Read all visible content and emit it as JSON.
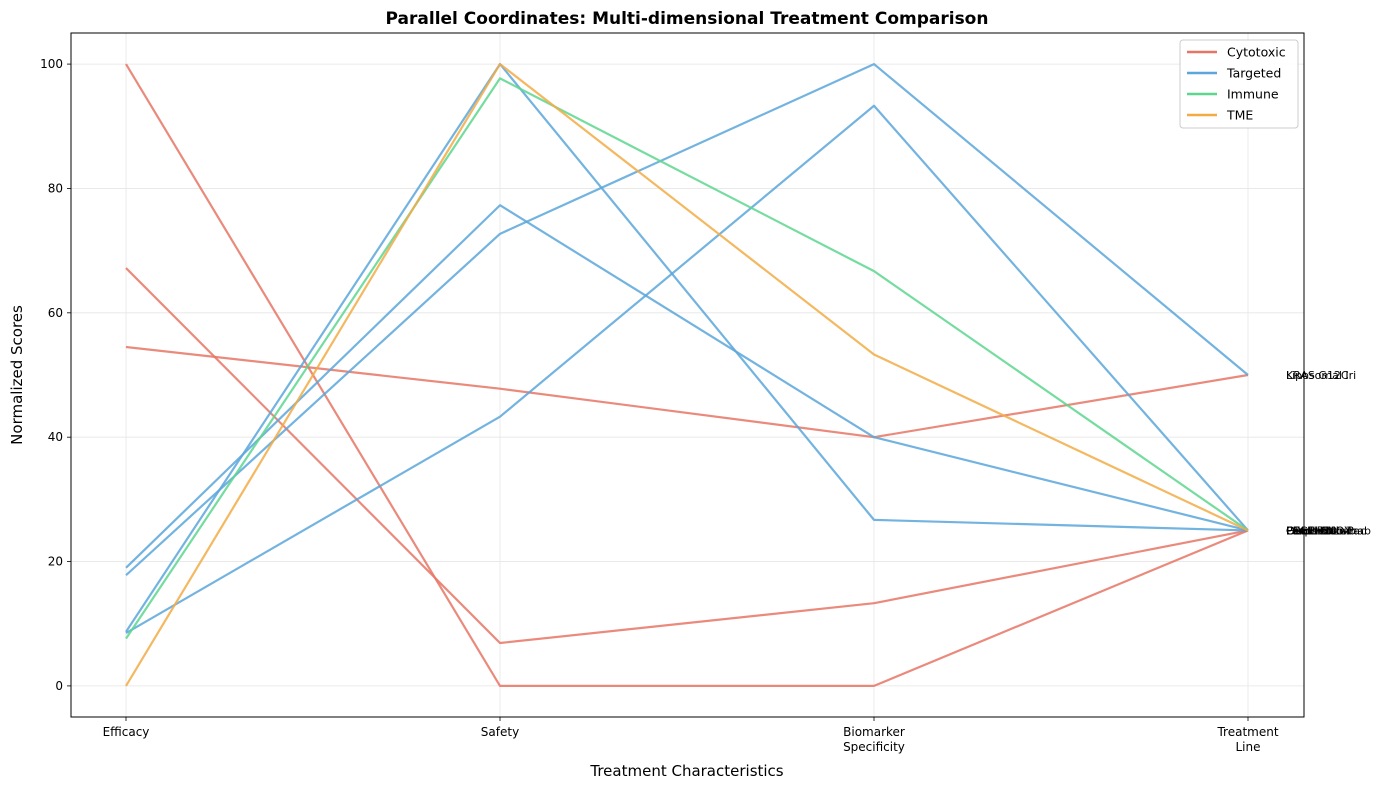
{
  "chart_data": {
    "type": "line",
    "subtype": "parallel-coordinates",
    "title": "Parallel Coordinates: Multi-dimensional Treatment Comparison",
    "xlabel": "Treatment Characteristics",
    "ylabel": "Normalized Scores",
    "categories": [
      [
        "Efficacy"
      ],
      [
        "Safety"
      ],
      [
        "Biomarker",
        "Specificity"
      ],
      [
        "Treatment",
        "Line"
      ]
    ],
    "ylim": [
      -5,
      105
    ],
    "yticks": [
      0,
      20,
      40,
      60,
      80,
      100
    ],
    "grid": true,
    "legend": {
      "position": "top-right",
      "entries": [
        {
          "name": "Cytotoxic",
          "color": "#e67565"
        },
        {
          "name": "Targeted",
          "color": "#5ba6db"
        },
        {
          "name": "Immune",
          "color": "#5dd68e"
        },
        {
          "name": "TME",
          "color": "#f2ab45"
        }
      ]
    },
    "end_labels_left": [
      "KRAS G12C",
      "Liposomal Iri"
    ],
    "end_labels_right": [
      "Gem+Nab-Pac",
      "FOLFIRINOX",
      "Olaparib",
      "Erlotinib",
      "Larotrectinib",
      "Pembrolizumab",
      "PEGPH20"
    ],
    "series": [
      {
        "group": "Cytotoxic",
        "values": [
          100,
          0,
          0,
          25
        ]
      },
      {
        "group": "Cytotoxic",
        "values": [
          67.2,
          6.9,
          13.3,
          25
        ]
      },
      {
        "group": "Cytotoxic",
        "values": [
          54.5,
          47.8,
          40,
          50
        ]
      },
      {
        "group": "Targeted",
        "values": [
          8.7,
          100,
          26.7,
          25
        ]
      },
      {
        "group": "Targeted",
        "values": [
          17.8,
          72.7,
          100,
          50
        ]
      },
      {
        "group": "Targeted",
        "values": [
          19,
          77.3,
          40,
          25
        ]
      },
      {
        "group": "Targeted",
        "values": [
          8.5,
          43.3,
          93.3,
          25
        ]
      },
      {
        "group": "Immune",
        "values": [
          7.6,
          97.7,
          66.7,
          25
        ]
      },
      {
        "group": "TME",
        "values": [
          0,
          100,
          53.3,
          25
        ]
      }
    ]
  }
}
